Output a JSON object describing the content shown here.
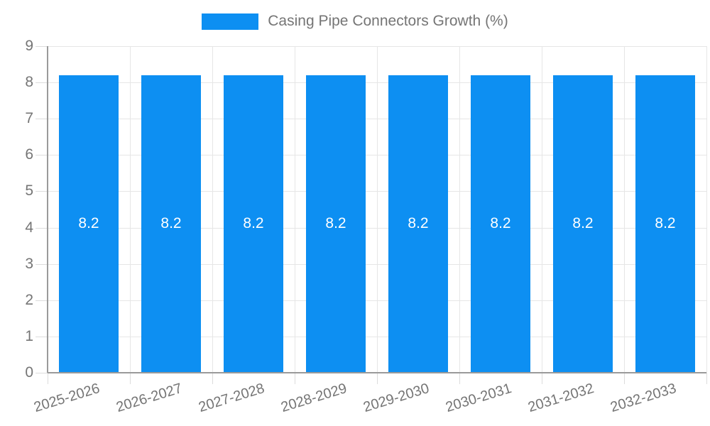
{
  "legend": {
    "label": "Casing Pipe Connectors Growth (%)"
  },
  "colors": {
    "bar": "#0d8ff2",
    "bar_label_text": "#ffffff",
    "axis_text": "#757575",
    "gridline": "#e6e6e6",
    "axis_line": "#9a9a9a",
    "tick": "#dcdcdc",
    "background": "#ffffff"
  },
  "chart_data": {
    "type": "bar",
    "title": "",
    "xlabel": "",
    "ylabel": "",
    "categories": [
      "2025-2026",
      "2026-2027",
      "2027-2028",
      "2028-2029",
      "2029-2030",
      "2030-2031",
      "2031-2032",
      "2032-2033"
    ],
    "series": [
      {
        "name": "Casing Pipe Connectors Growth (%)",
        "values": [
          8.2,
          8.2,
          8.2,
          8.2,
          8.2,
          8.2,
          8.2,
          8.2
        ]
      }
    ],
    "bar_labels": [
      "8.2",
      "8.2",
      "8.2",
      "8.2",
      "8.2",
      "8.2",
      "8.2",
      "8.2"
    ],
    "y_ticks": [
      "0",
      "1",
      "2",
      "3",
      "4",
      "5",
      "6",
      "7",
      "8",
      "9"
    ],
    "ylim": [
      0,
      9
    ],
    "grid": true,
    "legend_position": "top"
  }
}
